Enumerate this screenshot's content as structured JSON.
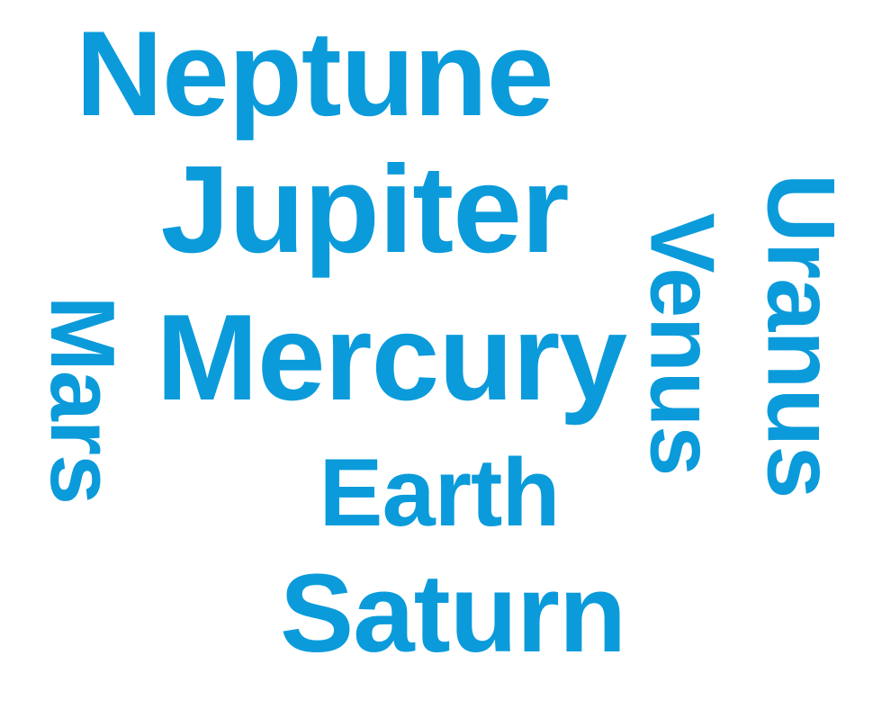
{
  "word_cloud": {
    "color": "#0B9BDB",
    "words": [
      {
        "text": "Neptune",
        "orientation": "horizontal"
      },
      {
        "text": "Jupiter",
        "orientation": "horizontal"
      },
      {
        "text": "Mercury",
        "orientation": "horizontal"
      },
      {
        "text": "Earth",
        "orientation": "horizontal"
      },
      {
        "text": "Saturn",
        "orientation": "horizontal"
      },
      {
        "text": "Mars",
        "orientation": "vertical"
      },
      {
        "text": "Venus",
        "orientation": "vertical"
      },
      {
        "text": "Uranus",
        "orientation": "vertical"
      }
    ]
  }
}
